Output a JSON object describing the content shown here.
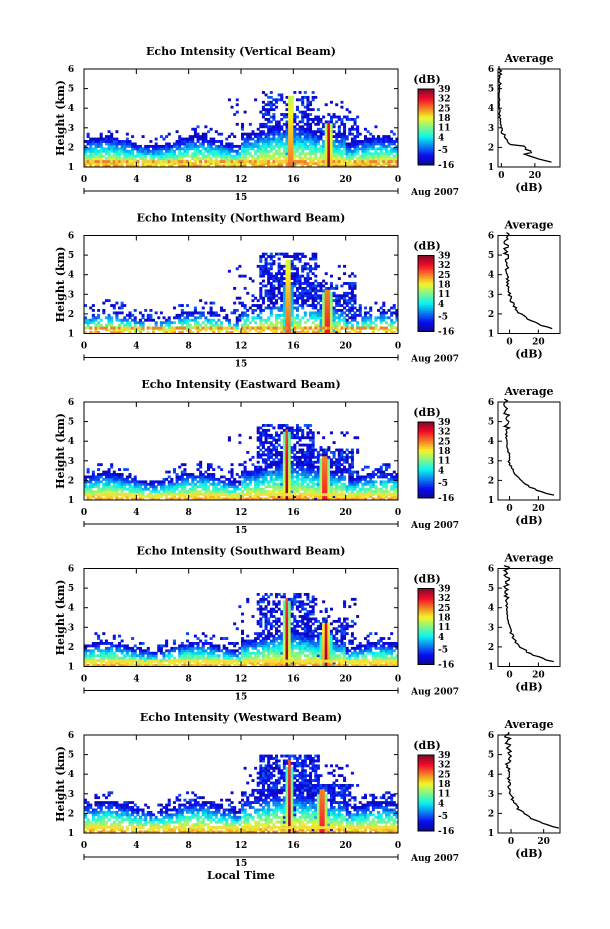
{
  "figure": {
    "date_label": "Aug 2007",
    "xlabel": "Local Time",
    "ylabel": "Height (km)",
    "day_label": "15",
    "x_ticks": [
      "0",
      "4",
      "8",
      "12",
      "16",
      "20",
      "0"
    ],
    "y_ticks": [
      "1",
      "2",
      "3",
      "4",
      "5",
      "6"
    ],
    "colorbar_unit": "(dB)",
    "colorbar_ticks": [
      "-16",
      "-5",
      "4",
      "11",
      "18",
      "25",
      "32",
      "39"
    ],
    "avg_title": "Average",
    "avg_xlabel": "(dB)"
  },
  "chart_data": [
    {
      "type": "heatmap",
      "title": "Echo Intensity (Vertical Beam)",
      "xlim": [
        0,
        24
      ],
      "ylim": [
        1,
        6
      ],
      "clim": [
        -16,
        39
      ],
      "avg_x_ticks": [
        "0",
        "20"
      ],
      "avg_xlim": [
        -2,
        35
      ],
      "base_top": 2.35,
      "fill": 0.85,
      "sparse": 0.25,
      "peaks": [
        {
          "t": 15.8,
          "h": 4.6,
          "w": 0.35
        },
        {
          "t": 18.7,
          "h": 3.3,
          "w": 0.5
        }
      ],
      "surface": "orange"
    },
    {
      "type": "heatmap",
      "title": "Echo Intensity (Northward Beam)",
      "xlim": [
        0,
        24
      ],
      "ylim": [
        1,
        6
      ],
      "clim": [
        -16,
        39
      ],
      "avg_x_ticks": [
        "0",
        "20"
      ],
      "avg_xlim": [
        -8,
        35
      ],
      "base_top": 1.95,
      "fill": 0.55,
      "sparse": 0.35,
      "peaks": [
        {
          "t": 15.6,
          "h": 4.8,
          "w": 0.4
        },
        {
          "t": 18.6,
          "h": 3.3,
          "w": 0.6
        }
      ],
      "surface": "orange"
    },
    {
      "type": "heatmap",
      "title": "Echo Intensity (Eastward Beam)",
      "xlim": [
        0,
        24
      ],
      "ylim": [
        1,
        6
      ],
      "clim": [
        -16,
        39
      ],
      "avg_x_ticks": [
        "0",
        "20"
      ],
      "avg_xlim": [
        -8,
        35
      ],
      "base_top": 2.2,
      "fill": 0.8,
      "sparse": 0.35,
      "peaks": [
        {
          "t": 15.5,
          "h": 4.6,
          "w": 0.45
        },
        {
          "t": 18.4,
          "h": 3.3,
          "w": 0.6
        }
      ],
      "surface": "yellow"
    },
    {
      "type": "heatmap",
      "title": "Echo Intensity (Southward Beam)",
      "xlim": [
        0,
        24
      ],
      "ylim": [
        1,
        6
      ],
      "clim": [
        -16,
        39
      ],
      "avg_x_ticks": [
        "0",
        "20"
      ],
      "avg_xlim": [
        -8,
        35
      ],
      "base_top": 2.05,
      "fill": 0.8,
      "sparse": 0.3,
      "peaks": [
        {
          "t": 15.5,
          "h": 4.5,
          "w": 0.45
        },
        {
          "t": 18.5,
          "h": 3.2,
          "w": 0.6
        }
      ],
      "surface": "yellow"
    },
    {
      "type": "heatmap",
      "title": "Echo Intensity (Westward Beam)",
      "xlim": [
        0,
        24
      ],
      "ylim": [
        1,
        6
      ],
      "clim": [
        -16,
        39
      ],
      "avg_x_ticks": [
        "0",
        "20"
      ],
      "avg_xlim": [
        -8,
        30
      ],
      "base_top": 2.4,
      "fill": 0.75,
      "sparse": 0.4,
      "peaks": [
        {
          "t": 15.7,
          "h": 4.7,
          "w": 0.4
        },
        {
          "t": 18.2,
          "h": 3.2,
          "w": 0.6
        }
      ],
      "surface": "yellow",
      "show_xlabel": true
    }
  ]
}
